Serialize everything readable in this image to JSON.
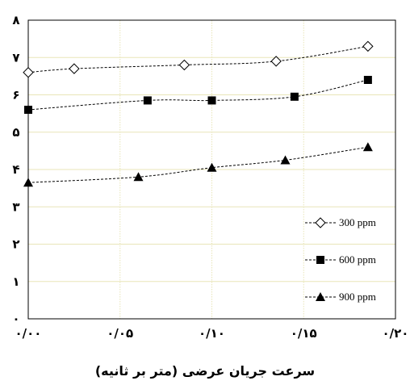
{
  "chart_data": {
    "type": "line",
    "xlabel": "سرعت جریان عرضی (متر بر ثانیه)",
    "ylabel": "",
    "xlim": [
      0,
      0.2
    ],
    "ylim": [
      0,
      8
    ],
    "x_ticks": [
      {
        "value": 0.0,
        "label": "۰/۰۰"
      },
      {
        "value": 0.05,
        "label": "۰/۰۵"
      },
      {
        "value": 0.1,
        "label": "۰/۱۰"
      },
      {
        "value": 0.15,
        "label": "۰/۱۵"
      },
      {
        "value": 0.2,
        "label": "۰/۲۰"
      }
    ],
    "y_ticks": [
      {
        "value": 0,
        "label": "۰"
      },
      {
        "value": 1,
        "label": "۱"
      },
      {
        "value": 2,
        "label": "۲"
      },
      {
        "value": 3,
        "label": "۳"
      },
      {
        "value": 4,
        "label": "۴"
      },
      {
        "value": 5,
        "label": "۵"
      },
      {
        "value": 6,
        "label": "۶"
      },
      {
        "value": 7,
        "label": "۷"
      },
      {
        "value": 8,
        "label": "۸"
      }
    ],
    "grid": true,
    "legend_position": "bottom-right",
    "series": [
      {
        "name": "300 ppm",
        "marker": "open-diamond",
        "color": "#000000",
        "x": [
          0.0,
          0.025,
          0.085,
          0.135,
          0.185
        ],
        "y": [
          6.6,
          6.7,
          6.8,
          6.9,
          7.3
        ]
      },
      {
        "name": "600 ppm",
        "marker": "filled-square",
        "color": "#000000",
        "x": [
          0.0,
          0.065,
          0.1,
          0.145,
          0.185
        ],
        "y": [
          5.6,
          5.85,
          5.85,
          5.95,
          6.4
        ]
      },
      {
        "name": "900 ppm",
        "marker": "filled-triangle",
        "color": "#000000",
        "x": [
          0.0,
          0.06,
          0.1,
          0.14,
          0.185
        ],
        "y": [
          3.65,
          3.8,
          4.05,
          4.25,
          4.6
        ]
      }
    ]
  }
}
